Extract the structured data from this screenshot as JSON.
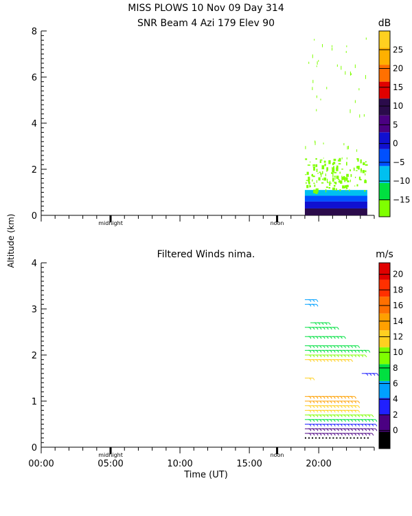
{
  "chart_data": [
    {
      "type": "heatmap",
      "title_line1": "MISS PLOWS   10 Nov 09 Day 314",
      "title_line2": "SNR Beam 4 Azi 179 Elev 90",
      "colorbar_unit": "dB",
      "colorbar_ticks": [
        "25",
        "20",
        "15",
        "10",
        "5",
        "0",
        "−5",
        "−10",
        "−15"
      ],
      "colorbar_min": -16,
      "colorbar_max": 30,
      "colorbar_colors": [
        "#7fff00",
        "#00e040",
        "#00c0f0",
        "#0050ff",
        "#1010d0",
        "#4b0082",
        "#2b0b4b",
        "#e00000",
        "#ff7000",
        "#ffb000",
        "#ffd020"
      ],
      "ylim": [
        0,
        8
      ],
      "yticks": [
        "0",
        "2",
        "4",
        "6",
        "8"
      ],
      "xlim": [
        0,
        24
      ],
      "marker_labels": [
        "midnight",
        "noon"
      ],
      "data_x_range": [
        19,
        23.5
      ],
      "layers": [
        {
          "alt_from": 0.0,
          "alt_to": 0.3,
          "snr_db": 12
        },
        {
          "alt_from": 0.3,
          "alt_to": 0.6,
          "snr_db": 4
        },
        {
          "alt_from": 0.6,
          "alt_to": 0.85,
          "snr_db": 0
        },
        {
          "alt_from": 0.85,
          "alt_to": 1.1,
          "snr_db": -5
        },
        {
          "alt_from": 1.1,
          "alt_to": 2.5,
          "snr_db": -15
        }
      ]
    },
    {
      "type": "scatter",
      "title": "Filtered Winds nima.",
      "colorbar_unit": "m/s",
      "colorbar_ticks": [
        "20",
        "18",
        "16",
        "14",
        "12",
        "10",
        "8",
        "6",
        "4",
        "2",
        "0"
      ],
      "colorbar_min": 0,
      "colorbar_max": 22,
      "colorbar_colors": [
        "#000000",
        "#4b0082",
        "#2020ff",
        "#00a0ff",
        "#00e040",
        "#7fff00",
        "#ffd020",
        "#ffa000",
        "#ff7000",
        "#ff3000",
        "#e00000"
      ],
      "ylim": [
        0,
        4
      ],
      "yticks": [
        "0",
        "1",
        "2",
        "3",
        "4"
      ],
      "xlim": [
        0,
        24
      ],
      "xticks": [
        "00:00",
        "05:00",
        "10:00",
        "15:00",
        "20:00"
      ],
      "xlabel": "Time (UT)",
      "marker_labels": [
        "midnight",
        "noon"
      ],
      "wind_rows": [
        {
          "alt": 0.2,
          "speed": 0,
          "x_from": 19.0,
          "x_to": 23.5
        },
        {
          "alt": 0.3,
          "speed": 2,
          "x_from": 19.0,
          "x_to": 23.7
        },
        {
          "alt": 0.4,
          "speed": 3,
          "x_from": 19.0,
          "x_to": 23.8
        },
        {
          "alt": 0.5,
          "speed": 5,
          "x_from": 19.0,
          "x_to": 23.8
        },
        {
          "alt": 0.6,
          "speed": 8,
          "x_from": 19.0,
          "x_to": 23.8
        },
        {
          "alt": 0.7,
          "speed": 10,
          "x_from": 19.0,
          "x_to": 23.5
        },
        {
          "alt": 0.8,
          "speed": 12,
          "x_from": 19.0,
          "x_to": 22.5
        },
        {
          "alt": 0.9,
          "speed": 13,
          "x_from": 19.0,
          "x_to": 22.5
        },
        {
          "alt": 1.0,
          "speed": 14,
          "x_from": 19.0,
          "x_to": 22.5
        },
        {
          "alt": 1.1,
          "speed": 15,
          "x_from": 19.0,
          "x_to": 22.3
        },
        {
          "alt": 1.5,
          "speed": 13,
          "x_from": 19.0,
          "x_to": 19.4
        },
        {
          "alt": 1.6,
          "speed": 4,
          "x_from": 23.1,
          "x_to": 23.9
        },
        {
          "alt": 1.9,
          "speed": 12,
          "x_from": 19.0,
          "x_to": 22.0
        },
        {
          "alt": 2.0,
          "speed": 11,
          "x_from": 19.0,
          "x_to": 23.2
        },
        {
          "alt": 2.1,
          "speed": 9,
          "x_from": 19.0,
          "x_to": 23.4
        },
        {
          "alt": 2.2,
          "speed": 9,
          "x_from": 19.0,
          "x_to": 22.5
        },
        {
          "alt": 2.4,
          "speed": 9,
          "x_from": 19.0,
          "x_to": 21.5
        },
        {
          "alt": 2.6,
          "speed": 9,
          "x_from": 19.0,
          "x_to": 21.2
        },
        {
          "alt": 2.7,
          "speed": 9,
          "x_from": 19.4,
          "x_to": 20.5
        },
        {
          "alt": 3.1,
          "speed": 6,
          "x_from": 19.0,
          "x_to": 19.6
        },
        {
          "alt": 3.2,
          "speed": 6,
          "x_from": 19.0,
          "x_to": 19.6
        }
      ]
    }
  ],
  "shared": {
    "ylabel": "Altitude (km)"
  }
}
